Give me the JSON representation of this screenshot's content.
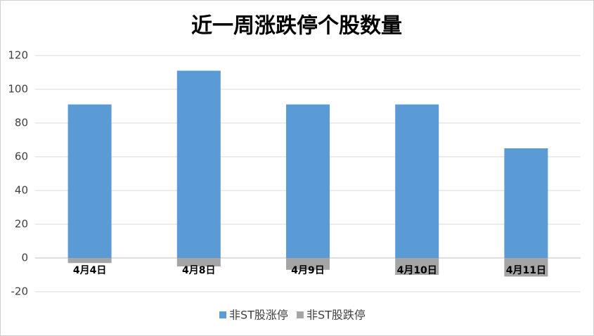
{
  "chart_data": {
    "type": "bar",
    "title": "近一周涨跌停个股数量",
    "categories": [
      "4月4日",
      "4月8日",
      "4月9日",
      "4月10日",
      "4月11日"
    ],
    "series": [
      {
        "name": "非ST股涨停",
        "color": "#5b9bd5",
        "values": [
          91,
          111,
          91,
          91,
          65
        ]
      },
      {
        "name": "非ST股跌停",
        "color": "#a5a5a5",
        "values": [
          -3,
          -5,
          -7,
          -10,
          -11
        ]
      }
    ],
    "ylim": [
      -20,
      120
    ],
    "yticks": [
      -20,
      0,
      20,
      40,
      60,
      80,
      100,
      120
    ],
    "grid": true,
    "legend": "bottom"
  }
}
